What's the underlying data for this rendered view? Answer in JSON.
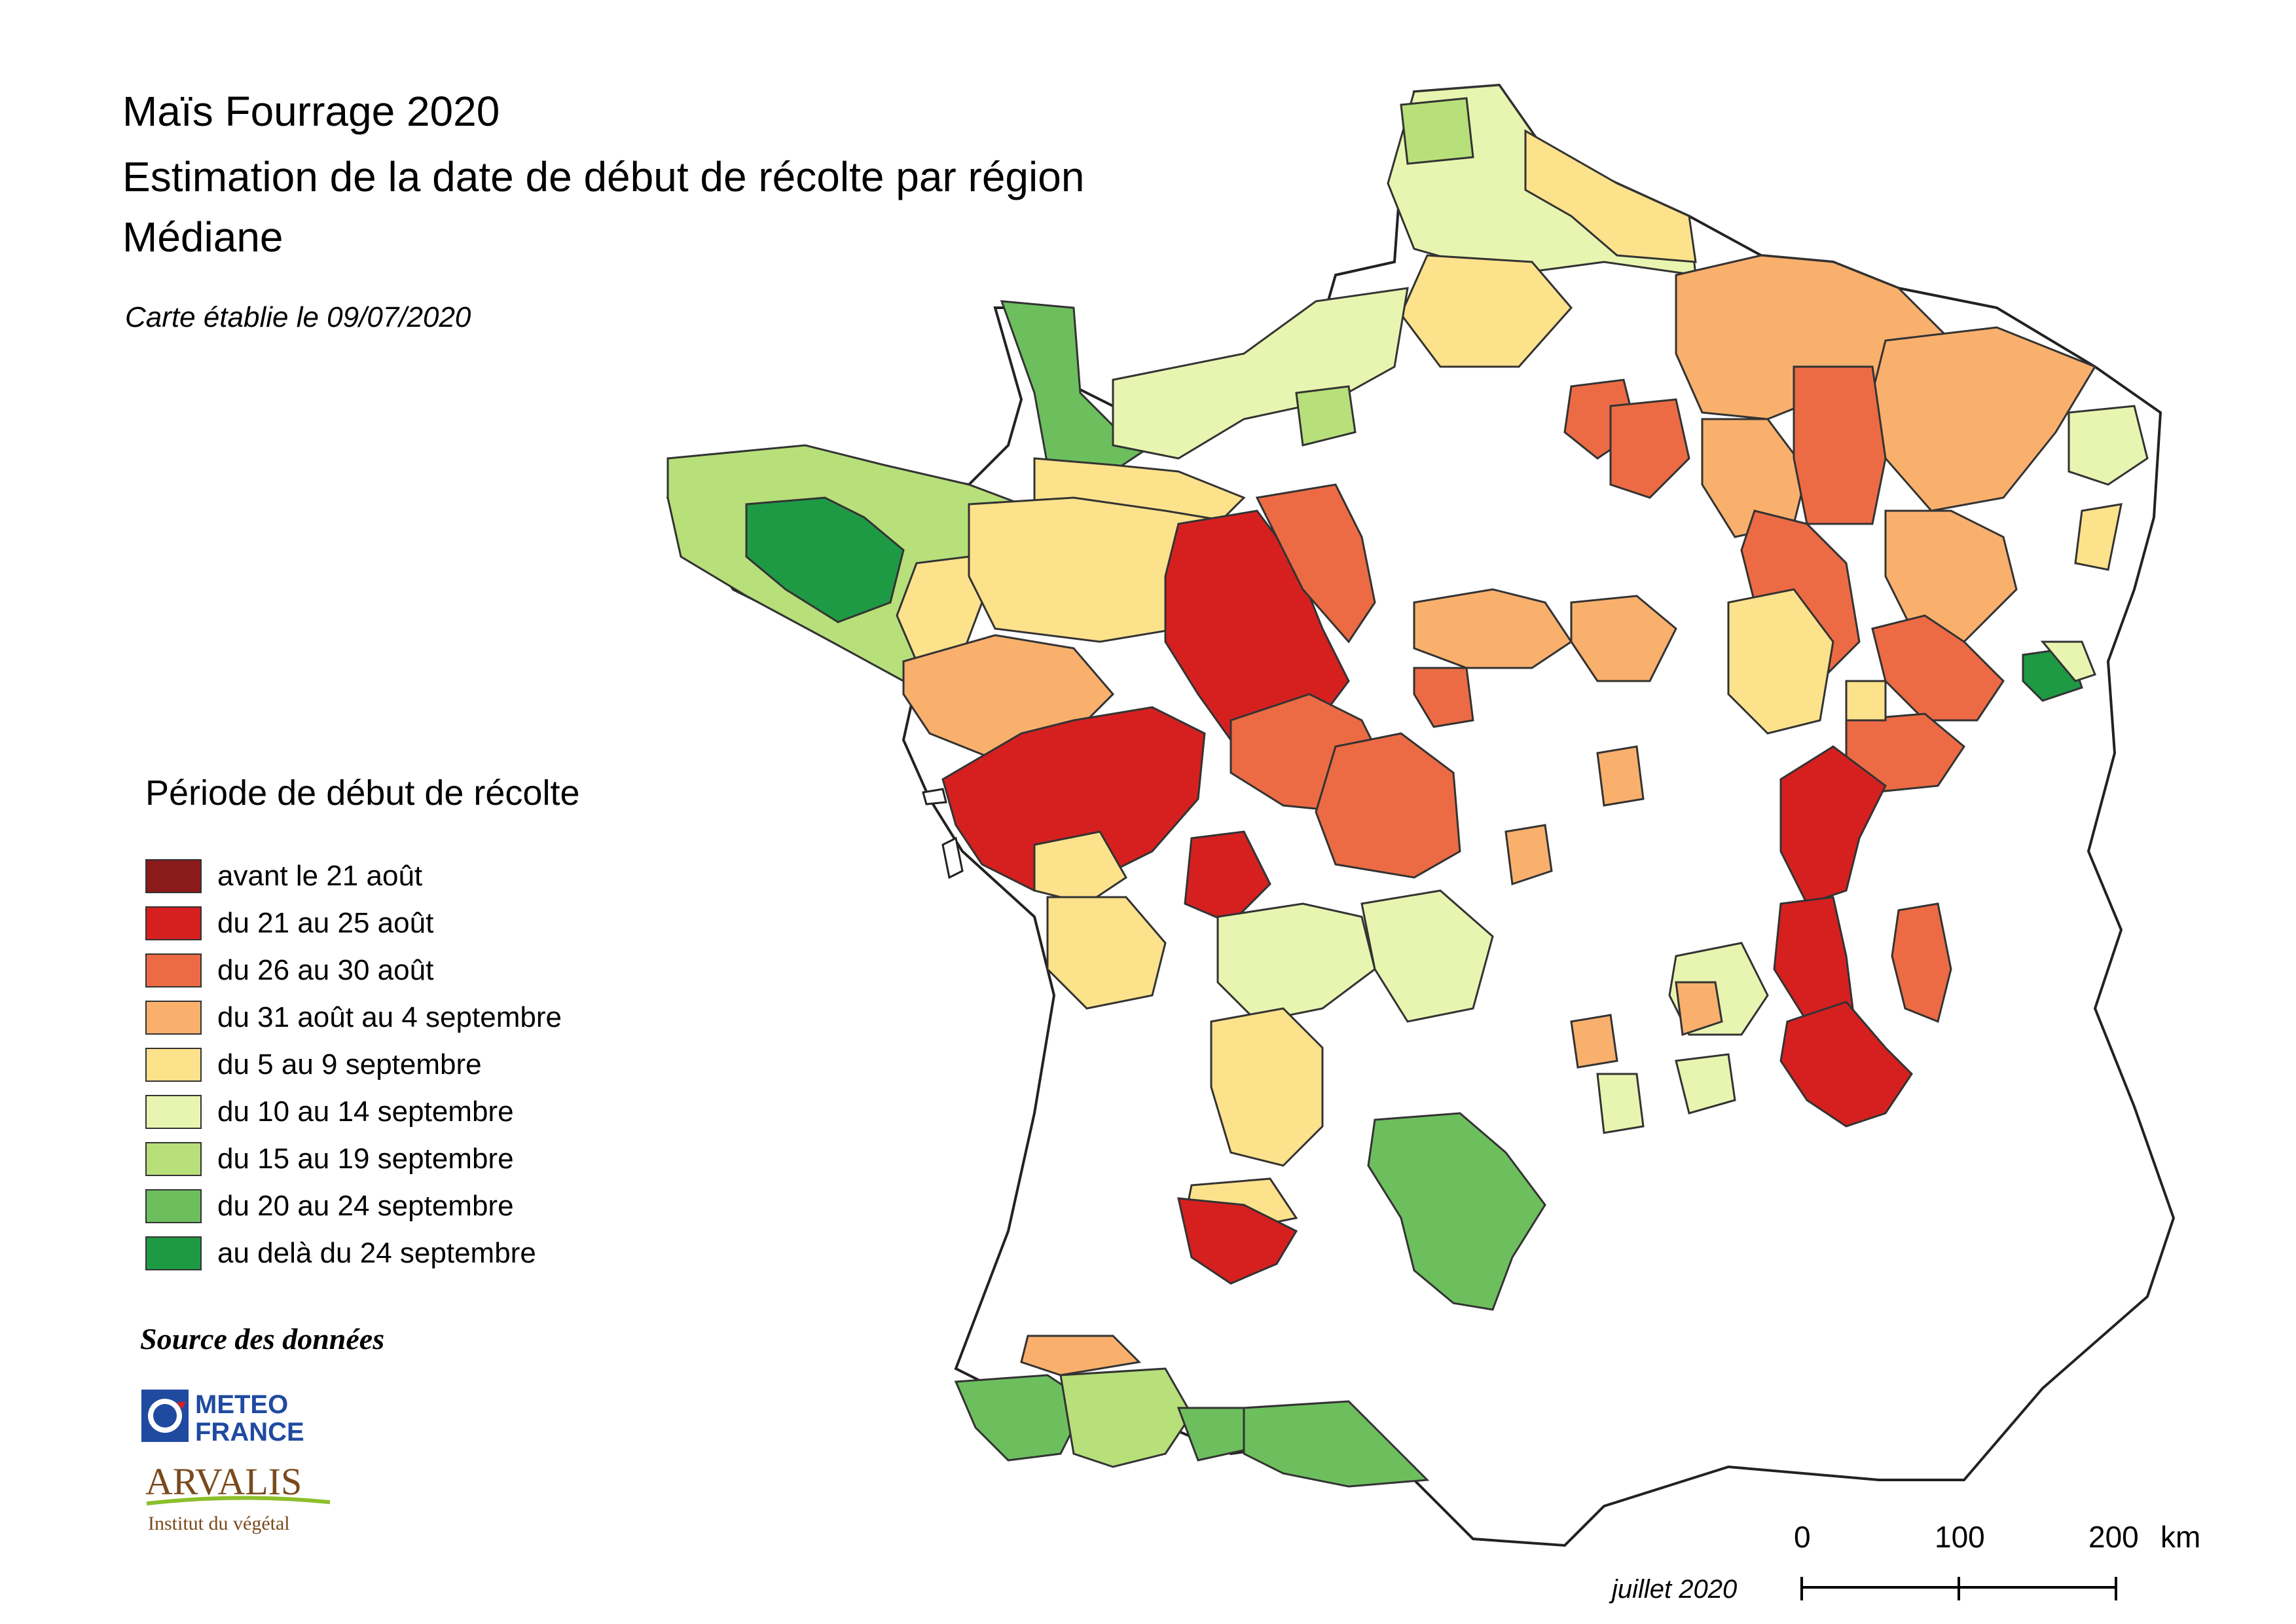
{
  "title_lines": [
    "Maïs Fourrage 2020",
    "Estimation de la date de début de récolte par région",
    "Médiane"
  ],
  "subtitle": "Carte établie le 09/07/2020",
  "legend": {
    "title": "Période de début de récolte",
    "items": [
      {
        "label": "avant le 21 août",
        "color": "#8b1a1a"
      },
      {
        "label": "du 21 au 25 août",
        "color": "#d62020"
      },
      {
        "label": "du 26 au 30 août",
        "color": "#ec6b44"
      },
      {
        "label": "du 31 août au 4 septembre",
        "color": "#f9b06d"
      },
      {
        "label": "du 5 au 9 septembre",
        "color": "#fde28c"
      },
      {
        "label": "du 10 au 14 septembre",
        "color": "#e8f5b0"
      },
      {
        "label": "du 15 au 19 septembre",
        "color": "#b7e07a"
      },
      {
        "label": "du 20 au 24 septembre",
        "color": "#6dbf5e"
      },
      {
        "label": "au delà du 24 septembre",
        "color": "#1e9a44"
      }
    ]
  },
  "source": {
    "title": "Source des données",
    "logos": [
      {
        "name": "meteo-france-logo",
        "lines": [
          "METEO",
          "FRANCE"
        ]
      },
      {
        "name": "arvalis-logo",
        "lines": [
          "ARVALIS",
          "Institut du végétal"
        ]
      }
    ]
  },
  "date_label": "juillet 2020",
  "scale_bar": {
    "ticks": [
      "0",
      "100",
      "200"
    ],
    "unit": "km"
  },
  "map": {
    "outline_color": "#222222",
    "default_fill": "#ffffff"
  }
}
